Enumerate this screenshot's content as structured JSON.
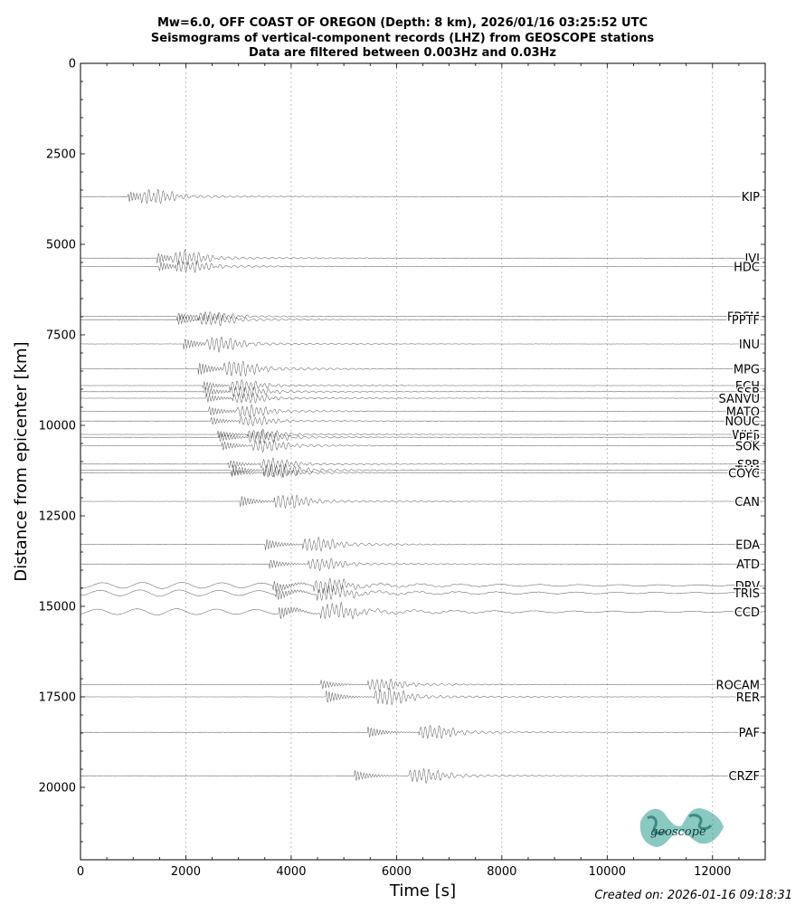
{
  "chart_data": {
    "type": "line",
    "title": [
      "Mw=6.0, OFF COAST OF OREGON (Depth: 8 km), 2026/01/16 03:25:52 UTC",
      "Seismograms of vertical-component records (LHZ) from GEOSCOPE stations",
      "Data are filtered between 0.003Hz and 0.03Hz"
    ],
    "xlabel": "Time [s]",
    "ylabel": "Distance from epicenter [km]",
    "xlim": [
      0,
      13000
    ],
    "ylim": [
      22000,
      0
    ],
    "xticks": [
      0,
      2000,
      4000,
      6000,
      8000,
      10000,
      12000
    ],
    "yticks": [
      0,
      2500,
      5000,
      7500,
      10000,
      12500,
      15000,
      17500,
      20000
    ],
    "grid": "vertical dotted",
    "stations": [
      {
        "name": "KIP",
        "distance": 3680,
        "arrival": 900,
        "amp": 12
      },
      {
        "name": "IVI",
        "distance": 5380,
        "arrival": 1430,
        "amp": 12
      },
      {
        "name": "HDC",
        "distance": 5610,
        "arrival": 1480,
        "amp": 10
      },
      {
        "name": "FDFM",
        "distance": 6990,
        "arrival": 1820,
        "amp": 8
      },
      {
        "name": "PPTF",
        "distance": 7080,
        "arrival": 1850,
        "amp": 10
      },
      {
        "name": "INU",
        "distance": 7750,
        "arrival": 1950,
        "amp": 12
      },
      {
        "name": "MPG",
        "distance": 8440,
        "arrival": 2230,
        "amp": 14
      },
      {
        "name": "ECH",
        "distance": 8900,
        "arrival": 2320,
        "amp": 9
      },
      {
        "name": "SSB",
        "distance": 9070,
        "arrival": 2340,
        "amp": 10
      },
      {
        "name": "SANVU",
        "distance": 9250,
        "arrival": 2370,
        "amp": 9
      },
      {
        "name": "MATO",
        "distance": 9610,
        "arrival": 2430,
        "amp": 10
      },
      {
        "name": "NOUC",
        "distance": 9880,
        "arrival": 2470,
        "amp": 8
      },
      {
        "name": "WUS",
        "distance": 10250,
        "arrival": 2600,
        "amp": 8
      },
      {
        "name": "PEL",
        "distance": 10330,
        "arrival": 2620,
        "amp": 10
      },
      {
        "name": "SOK",
        "distance": 10560,
        "arrival": 2680,
        "amp": 10
      },
      {
        "name": "SPB",
        "distance": 11070,
        "arrival": 2800,
        "amp": 9
      },
      {
        "name": "TAM",
        "distance": 11240,
        "arrival": 2850,
        "amp": 12
      },
      {
        "name": "COYC",
        "distance": 11310,
        "arrival": 2860,
        "amp": 8
      },
      {
        "name": "CAN",
        "distance": 12100,
        "arrival": 3020,
        "amp": 12
      },
      {
        "name": "EDA",
        "distance": 13290,
        "arrival": 3500,
        "amp": 12
      },
      {
        "name": "ATD",
        "distance": 13830,
        "arrival": 3580,
        "amp": 10
      },
      {
        "name": "DRV",
        "distance": 14420,
        "arrival": 3650,
        "amp": 12
      },
      {
        "name": "TRIS",
        "distance": 14630,
        "arrival": 3700,
        "amp": 12
      },
      {
        "name": "CCD",
        "distance": 15150,
        "arrival": 3750,
        "amp": 14
      },
      {
        "name": "ROCAM",
        "distance": 17160,
        "arrival": 4550,
        "amp": 10
      },
      {
        "name": "RER",
        "distance": 17500,
        "arrival": 4650,
        "amp": 14
      },
      {
        "name": "PAF",
        "distance": 18480,
        "arrival": 5450,
        "amp": 12
      },
      {
        "name": "CRZF",
        "distance": 19680,
        "arrival": 5200,
        "amp": 12
      }
    ]
  },
  "footer": {
    "created": "Created on: 2026-01-16 09:18:31"
  },
  "logo": {
    "text": "geoscope",
    "color": "#2a9d8f"
  }
}
